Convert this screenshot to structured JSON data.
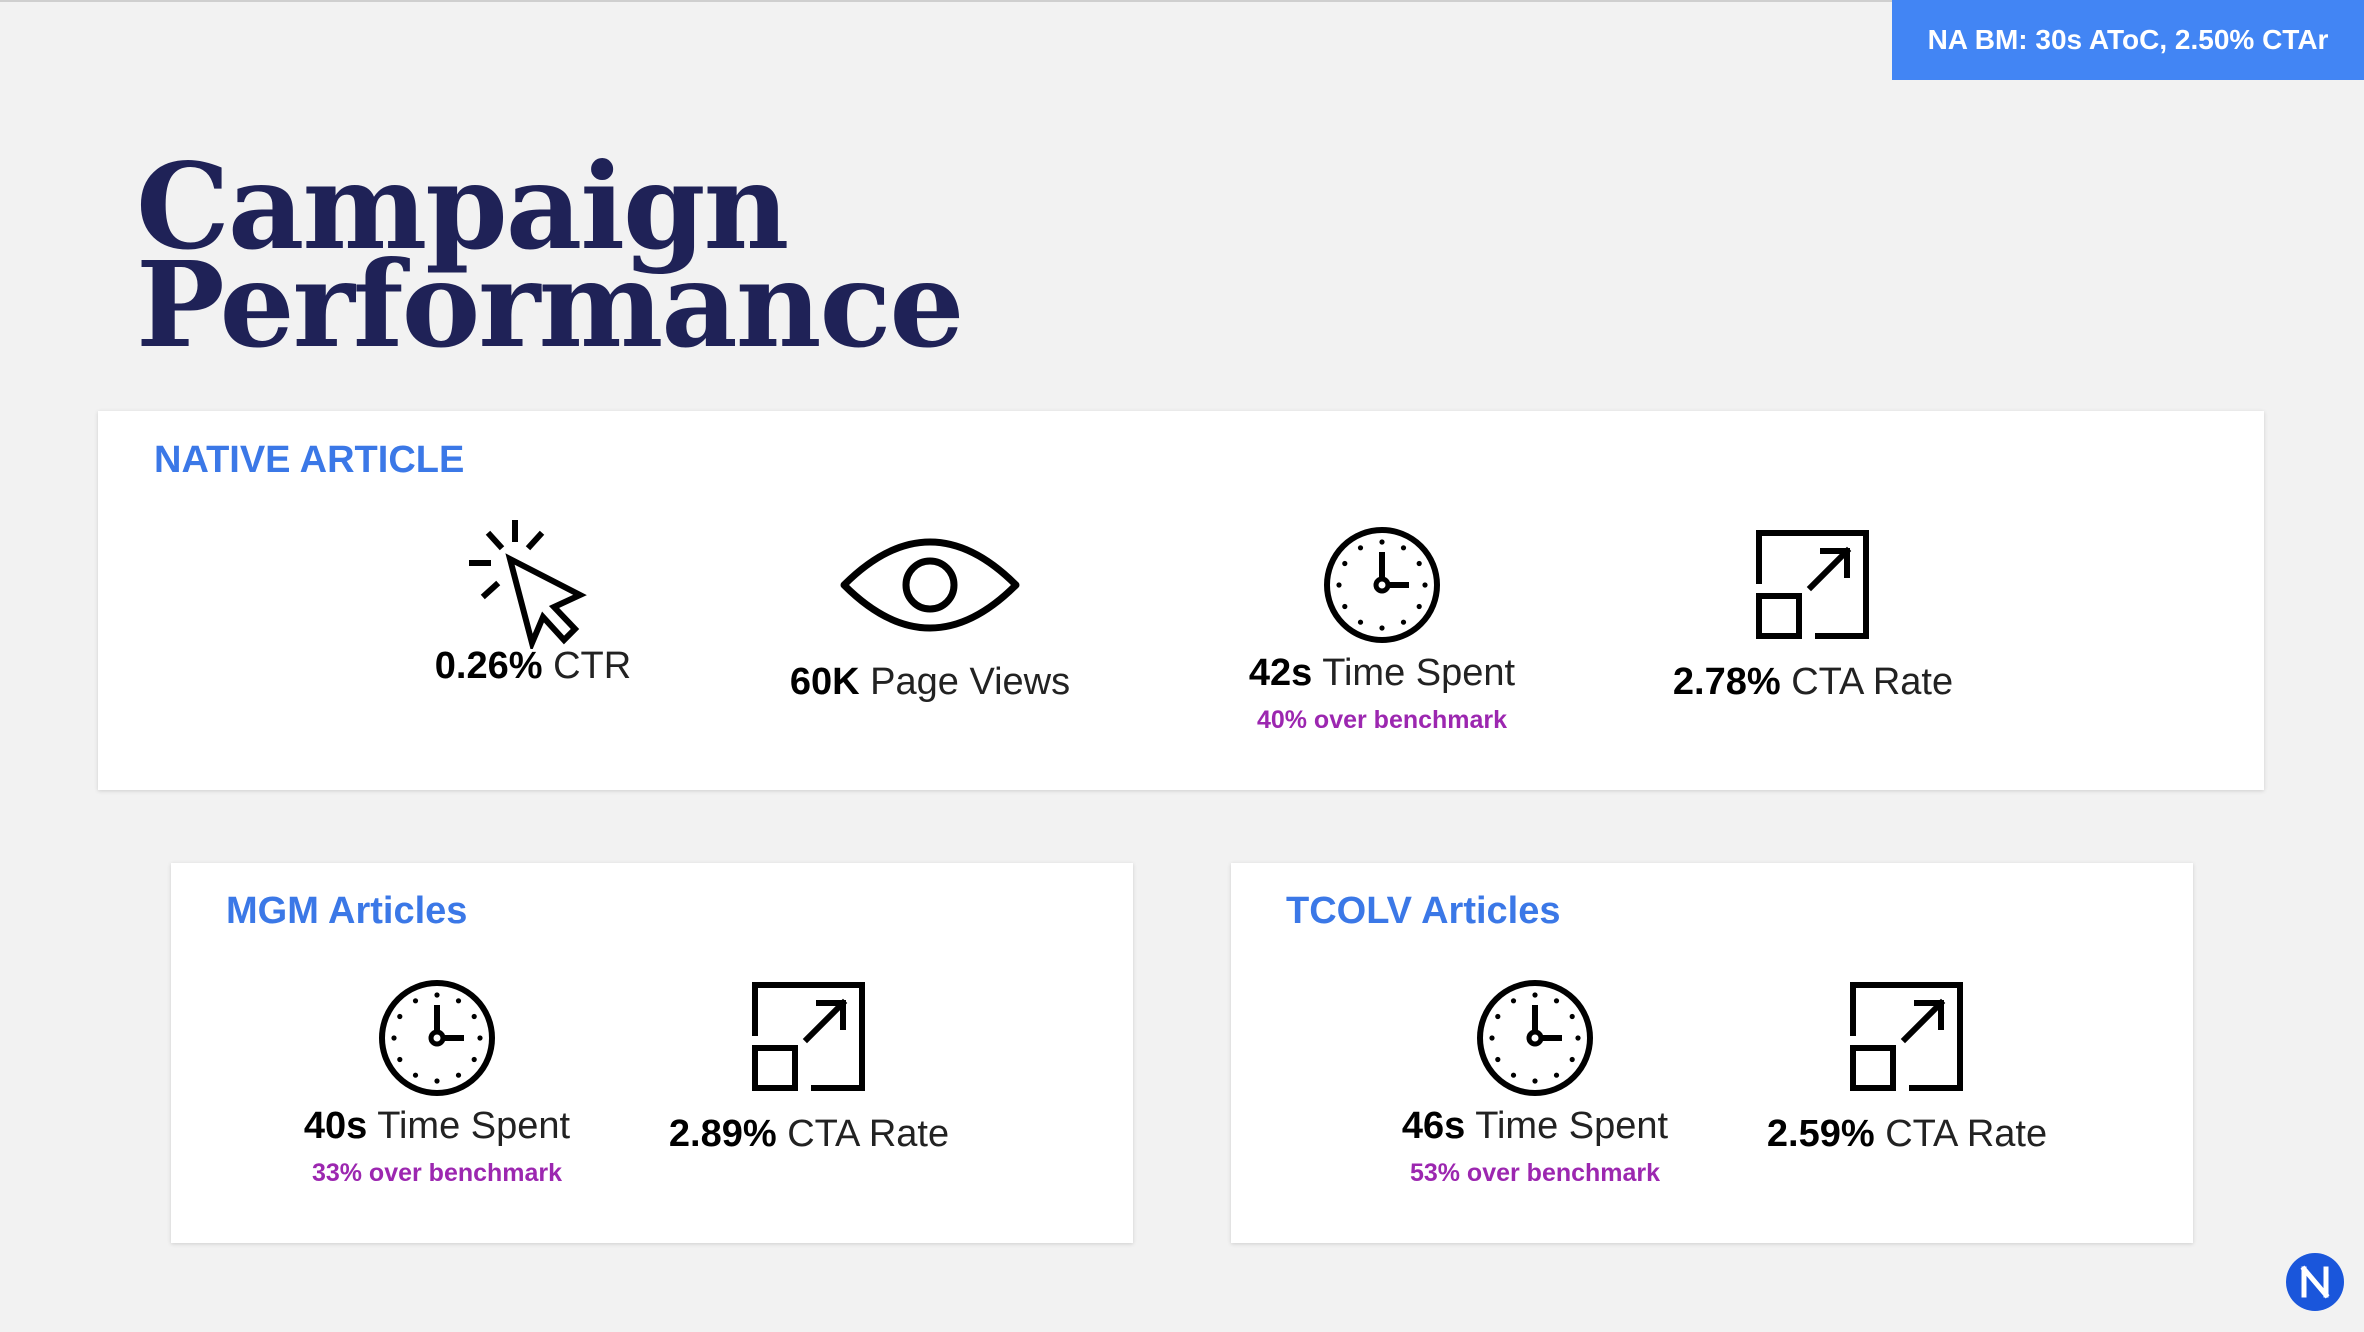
{
  "badge": "NA BM: 30s AToC, 2.50% CTAr",
  "title": [
    "Campaign",
    "Performance"
  ],
  "native": {
    "title": "NATIVE ARTICLE",
    "metrics": [
      {
        "icon": "cursor-click-icon",
        "value": "0.26%",
        "label": "CTR",
        "note": ""
      },
      {
        "icon": "eye-icon",
        "value": "60K",
        "label": "Page Views",
        "note": ""
      },
      {
        "icon": "clock-icon",
        "value": "42s",
        "label": "Time Spent",
        "note": "40% over benchmark"
      },
      {
        "icon": "expand-icon",
        "value": "2.78%",
        "label": "CTA Rate",
        "note": ""
      }
    ]
  },
  "mgm": {
    "title": "MGM Articles",
    "metrics": [
      {
        "icon": "clock-icon",
        "value": "40s",
        "label": "Time Spent",
        "note": "33% over benchmark"
      },
      {
        "icon": "expand-icon",
        "value": "2.89%",
        "label": "CTA Rate",
        "note": ""
      }
    ]
  },
  "tcolv": {
    "title": "TCOLV Articles",
    "metrics": [
      {
        "icon": "clock-icon",
        "value": "46s",
        "label": "Time Spent",
        "note": "53% over benchmark"
      },
      {
        "icon": "expand-icon",
        "value": "2.59%",
        "label": "CTA Rate",
        "note": ""
      }
    ]
  },
  "colors": {
    "accent": "#4285f4",
    "title": "#1f2257",
    "heading": "#3b78e7",
    "note": "#9c27b0",
    "logo": "#1a56db"
  },
  "logo": "n-logo-icon"
}
